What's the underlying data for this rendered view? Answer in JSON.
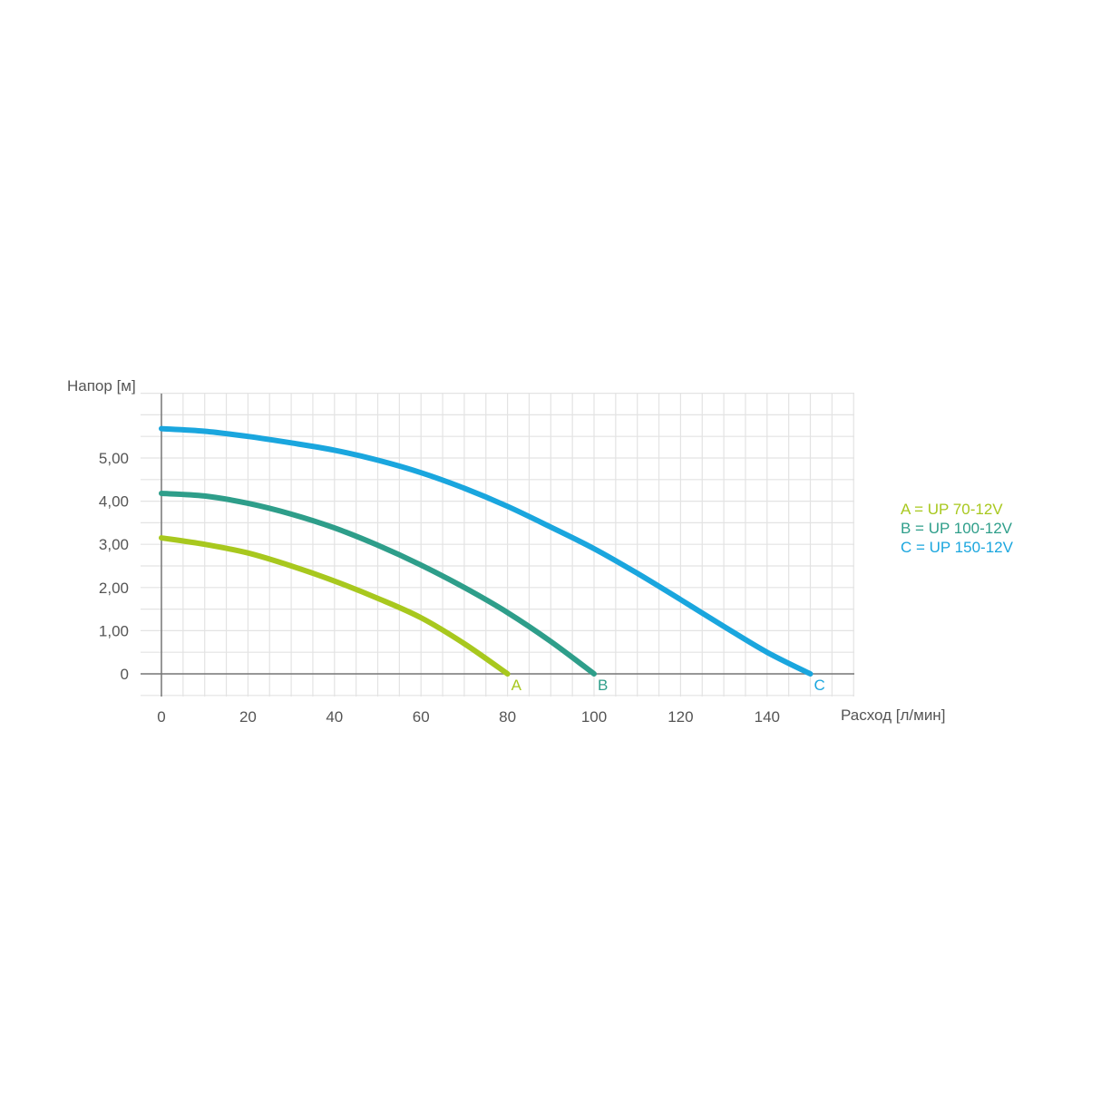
{
  "chart_data": {
    "type": "line",
    "ylabel": "Напор [м]",
    "xlabel": "Расход [л/мин]",
    "xlim": [
      0,
      160
    ],
    "ylim": [
      0,
      6.5
    ],
    "x_ticks": [
      {
        "value": 0,
        "label": "0"
      },
      {
        "value": 20,
        "label": "20"
      },
      {
        "value": 40,
        "label": "40"
      },
      {
        "value": 60,
        "label": "60"
      },
      {
        "value": 80,
        "label": "80"
      },
      {
        "value": 100,
        "label": "100"
      },
      {
        "value": 120,
        "label": "120"
      },
      {
        "value": 140,
        "label": "140"
      }
    ],
    "y_ticks": [
      {
        "value": 0,
        "label": "0"
      },
      {
        "value": 1,
        "label": "1,00"
      },
      {
        "value": 2,
        "label": "2,00"
      },
      {
        "value": 3,
        "label": "3,00"
      },
      {
        "value": 4,
        "label": "4,00"
      },
      {
        "value": 5,
        "label": "5,00"
      }
    ],
    "grid": true,
    "series": [
      {
        "name": "A = UP 70-12V",
        "end_label": "A",
        "color": "#a8c81e",
        "points": [
          [
            0,
            3.15
          ],
          [
            10,
            3.0
          ],
          [
            20,
            2.8
          ],
          [
            30,
            2.5
          ],
          [
            40,
            2.15
          ],
          [
            50,
            1.75
          ],
          [
            60,
            1.3
          ],
          [
            70,
            0.7
          ],
          [
            80,
            0.0
          ]
        ]
      },
      {
        "name": "B = UP 100-12V",
        "end_label": "B",
        "color": "#2e9e8a",
        "points": [
          [
            0,
            4.18
          ],
          [
            10,
            4.12
          ],
          [
            20,
            3.95
          ],
          [
            30,
            3.7
          ],
          [
            40,
            3.38
          ],
          [
            50,
            2.98
          ],
          [
            60,
            2.52
          ],
          [
            70,
            2.0
          ],
          [
            80,
            1.42
          ],
          [
            90,
            0.75
          ],
          [
            100,
            0.0
          ]
        ]
      },
      {
        "name": "C = UP 150-12V",
        "end_label": "C",
        "color": "#1aa6de",
        "points": [
          [
            0,
            5.68
          ],
          [
            10,
            5.62
          ],
          [
            20,
            5.5
          ],
          [
            30,
            5.35
          ],
          [
            40,
            5.18
          ],
          [
            50,
            4.95
          ],
          [
            60,
            4.66
          ],
          [
            70,
            4.3
          ],
          [
            80,
            3.88
          ],
          [
            90,
            3.4
          ],
          [
            100,
            2.9
          ],
          [
            110,
            2.33
          ],
          [
            120,
            1.72
          ],
          [
            130,
            1.1
          ],
          [
            140,
            0.5
          ],
          [
            150,
            0.0
          ]
        ]
      }
    ],
    "legend_position": "right"
  }
}
